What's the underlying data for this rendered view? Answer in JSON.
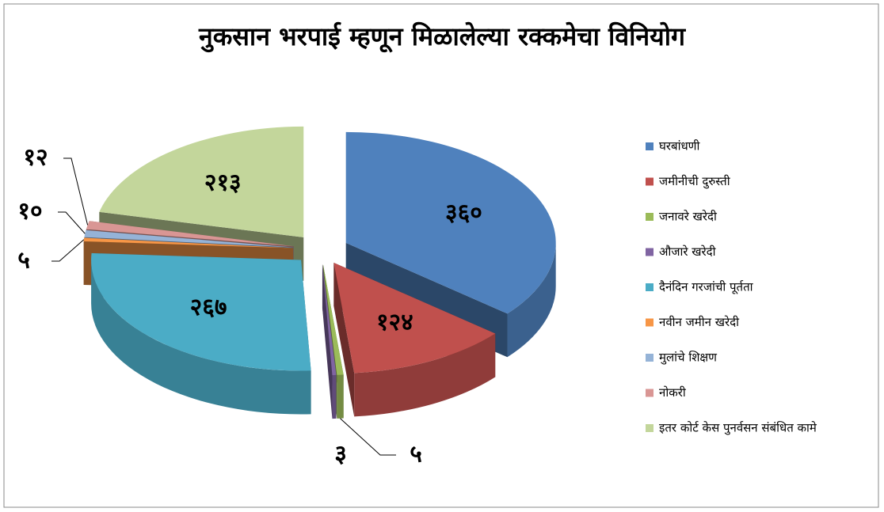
{
  "chart_data": {
    "type": "pie",
    "title": "नुकसान भरपाई म्हणून मिळालेल्या रक्कमेचा विनियोग",
    "categories": [
      "घरबांधणी",
      "जमीनीची दुरुस्ती",
      "जनावरे खरेदी",
      "औजारे खरेदी",
      "दैनंदिन गरजांची पूर्तता",
      "नवीन जमीन खरेदी",
      "मुलांचे शिक्षण",
      "नोकरी",
      "इतर कोर्ट केस पुनर्वसन संबंधित कामे"
    ],
    "values": [
      360,
      124,
      5,
      3,
      267,
      5,
      10,
      12,
      213
    ],
    "value_labels": [
      "३६०",
      "१२४",
      "५",
      "३",
      "२६७",
      "५",
      "१०",
      "१२",
      "२१३"
    ],
    "colors": [
      "#4f81bd",
      "#c0504d",
      "#9bbb59",
      "#8064a2",
      "#4bacc6",
      "#f79646",
      "#95b3d7",
      "#d99694",
      "#c3d69b"
    ],
    "legend": "right"
  }
}
